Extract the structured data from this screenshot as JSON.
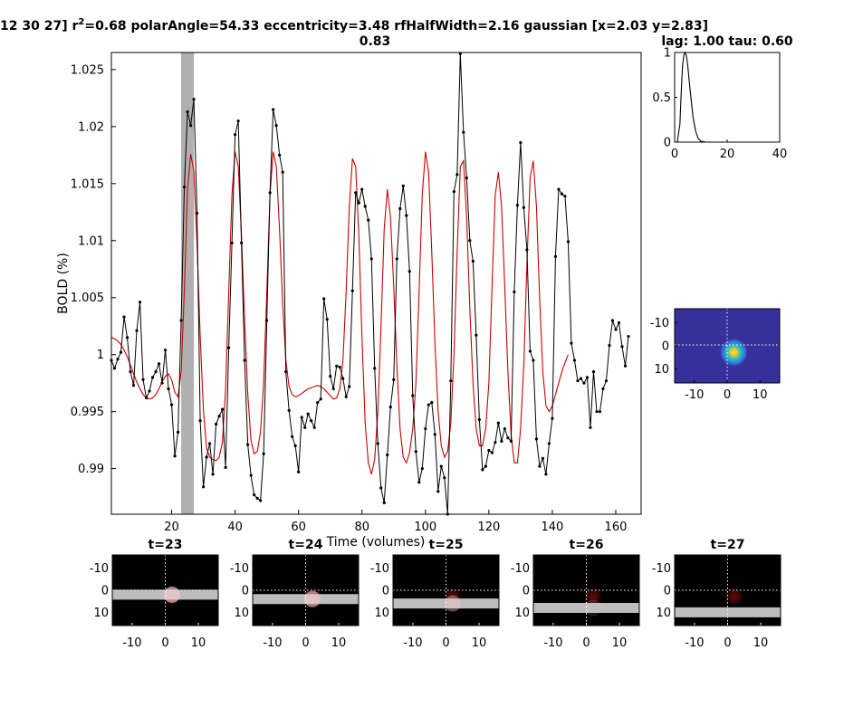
{
  "figure": {
    "title_prefix": "12 30 27] r",
    "title_sup": "2",
    "title_rest": "=0.68 polarAngle=54.33 eccentricity=3.48 rfHalfWidth=2.16 gaussian [x=2.03 y=2.83]",
    "title_line2": "0.83"
  },
  "colors": {
    "bold_series": "#000000",
    "model_fit": "#cc0000",
    "highlight_bar": "#b0b0b0",
    "stim_bar": "#bdbdbd",
    "rf_background": "#35309a",
    "crosshair": "#ffffff"
  },
  "chart_data": [
    {
      "id": "main",
      "type": "line",
      "title": "",
      "xlabel": "Time (volumes)",
      "ylabel": "BOLD (%)",
      "xlim": [
        1,
        168
      ],
      "ylim": [
        0.986,
        1.0265
      ],
      "xticks": [
        20,
        40,
        60,
        80,
        100,
        120,
        140,
        160
      ],
      "yticks": [
        0.99,
        0.995,
        1,
        1.005,
        1.01,
        1.015,
        1.02,
        1.025
      ],
      "ytick_labels": [
        "0.99",
        "0.995",
        "1",
        "1.005",
        "1.01",
        "1.015",
        "1.02",
        "1.025"
      ],
      "highlight_x": [
        23,
        27
      ],
      "series": [
        {
          "style": "black line with dot markers",
          "x_start": 1,
          "values": [
            0.9995,
            0.9988,
            0.9996,
            1.0002,
            1.0033,
            1.0015,
            0.9985,
            0.9973,
            1.0021,
            1.0046,
            0.9978,
            0.9962,
            0.9968,
            0.998,
            0.9985,
            0.9992,
            0.9975,
            1.0004,
            0.997,
            0.9956,
            0.9911,
            0.9932,
            1.003,
            1.0147,
            1.0213,
            1.0201,
            1.0224,
            1.0124,
            0.9942,
            0.9884,
            0.991,
            0.9922,
            0.9895,
            0.9939,
            0.9946,
            0.9952,
            0.9901,
            1.0006,
            1.0098,
            1.0193,
            1.0205,
            1.0098,
            0.9995,
            0.9921,
            0.9894,
            0.9877,
            0.9874,
            0.9872,
            0.9913,
            1.003,
            1.0142,
            1.0215,
            1.0201,
            1.0175,
            1.016,
            0.9985,
            0.9951,
            0.9928,
            0.992,
            0.9897,
            0.9945,
            0.9936,
            0.9948,
            0.9942,
            0.9936,
            0.9958,
            0.9961,
            1.0049,
            1.0031,
            0.9981,
            0.997,
            0.999,
            0.9989,
            0.9979,
            0.9963,
            0.9972,
            1.0056,
            1.0142,
            1.0133,
            1.0145,
            1.013,
            1.0118,
            1.0084,
            0.9988,
            0.9922,
            0.9883,
            0.987,
            0.9912,
            0.9954,
            0.9978,
            1.0084,
            1.0128,
            1.0148,
            1.0122,
            1.0073,
            0.9964,
            0.9915,
            0.9888,
            0.99,
            0.9935,
            0.9956,
            0.9958,
            0.993,
            0.988,
            0.9902,
            0.9892,
            0.986,
            0.9977,
            1.0143,
            1.0158,
            1.0264,
            1.0195,
            1.0155,
            1.01,
            1.0082,
            1.0017,
            0.9943,
            0.9899,
            0.9902,
            0.9916,
            0.9914,
            0.9923,
            0.994,
            0.9924,
            0.9935,
            0.9927,
            0.9924,
            1.0055,
            1.0131,
            1.0186,
            1.0129,
            1.0092,
            1.0003,
            0.9995,
            0.9926,
            0.9902,
            0.9909,
            0.9895,
            0.9922,
            0.9944,
            1.0086,
            1.0145,
            1.0141,
            1.0139,
            1.0099,
            1.001,
            0.9995,
            0.9977,
            0.9979,
            0.9975,
            0.998,
            0.9936,
            0.9985,
            0.995,
            0.995,
            0.997,
            0.9977,
            1.0008,
            1.003,
            1.0022,
            1.0028,
            1.0007,
            0.999,
            1.0016
          ]
        },
        {
          "style": "red model fit",
          "x_start": 1,
          "values": [
            1.0015,
            1.0014,
            1.0012,
            1.0009,
            1.0004,
            0.9998,
            0.9991,
            0.9983,
            0.9976,
            0.997,
            0.9965,
            0.9962,
            0.9961,
            0.9962,
            0.9965,
            0.997,
            0.9976,
            0.9981,
            0.9983,
            0.9978,
            0.9967,
            0.9963,
            0.9985,
            1.0056,
            1.0145,
            1.0176,
            1.0161,
            1.0097,
            1.0016,
            0.9952,
            0.9918,
            0.991,
            0.9908,
            0.9907,
            0.991,
            0.9923,
            0.997,
            1.0055,
            1.014,
            1.0178,
            1.0165,
            1.0105,
            1.003,
            0.9965,
            0.9925,
            0.9913,
            0.9915,
            0.9932,
            0.9975,
            1.0055,
            1.014,
            1.0178,
            1.0165,
            1.011,
            1.0045,
            0.9995,
            0.9972,
            0.9965,
            0.9963,
            0.9964,
            0.9966,
            0.9968,
            0.997,
            0.9971,
            0.9972,
            0.9973,
            0.9972,
            0.997,
            0.9967,
            0.9964,
            0.9961,
            0.9962,
            0.997,
            0.9995,
            1.0055,
            1.013,
            1.0172,
            1.0165,
            1.0105,
            1.0015,
            0.994,
            0.9905,
            0.9895,
            0.9908,
            0.995,
            1.0025,
            1.011,
            1.0145,
            1.012,
            1.006,
            0.999,
            0.9935,
            0.991,
            0.9905,
            0.9914,
            0.9935,
            0.9975,
            1.0055,
            1.014,
            1.0178,
            1.016,
            1.009,
            1.001,
            0.995,
            0.992,
            0.991,
            0.9915,
            0.994,
            1.0,
            1.009,
            1.0165,
            1.017,
            1.012,
            1.004,
            0.9975,
            0.9935,
            0.992,
            0.992,
            0.9935,
            0.9975,
            1.006,
            1.014,
            1.016,
            1.013,
            1.006,
            0.9985,
            0.993,
            0.9905,
            0.9905,
            0.9935,
            0.999,
            1.008,
            1.0155,
            1.017,
            1.013,
            1.005,
            0.9985,
            0.9955,
            0.995,
            0.9955,
            0.9965,
            0.9975,
            0.9985,
            0.9993,
            1.0
          ]
        }
      ]
    },
    {
      "id": "hrf",
      "type": "line",
      "title": "lag: 1.00 tau: 0.60",
      "xlim": [
        0,
        40
      ],
      "ylim": [
        0,
        1
      ],
      "xticks": [
        0,
        20,
        40
      ],
      "yticks": [
        0,
        0.5,
        1
      ],
      "ytick_labels": [
        "0",
        "0.5",
        "1"
      ],
      "series": [
        {
          "style": "black line",
          "x": [
            0,
            1,
            2,
            2.5,
            3,
            3.5,
            4,
            4.5,
            5,
            6,
            7,
            8,
            9,
            10,
            12,
            15,
            20,
            30,
            40
          ],
          "values": [
            0,
            0,
            0.2,
            0.55,
            0.85,
            0.97,
            1.0,
            0.96,
            0.85,
            0.55,
            0.28,
            0.12,
            0.04,
            0.01,
            0,
            0,
            0,
            0,
            0
          ]
        }
      ]
    }
  ],
  "rf_panel": {
    "xticks": [
      -10,
      0,
      10
    ],
    "yticks": [
      -10,
      0,
      10
    ],
    "center": [
      2.03,
      2.83
    ],
    "halfwidth": 2.16,
    "lim": [
      -16,
      16
    ]
  },
  "stim_panels": [
    {
      "label": "t=23",
      "bar_y": 2.0
    },
    {
      "label": "t=24",
      "bar_y": 4.0
    },
    {
      "label": "t=25",
      "bar_y": 6.0
    },
    {
      "label": "t=26",
      "bar_y": 8.0
    },
    {
      "label": "t=27",
      "bar_y": 10.0
    }
  ],
  "stim_axes": {
    "xticks": [
      -10,
      0,
      10
    ],
    "yticks": [
      -10,
      0,
      10
    ],
    "lim": [
      -16,
      16
    ]
  }
}
